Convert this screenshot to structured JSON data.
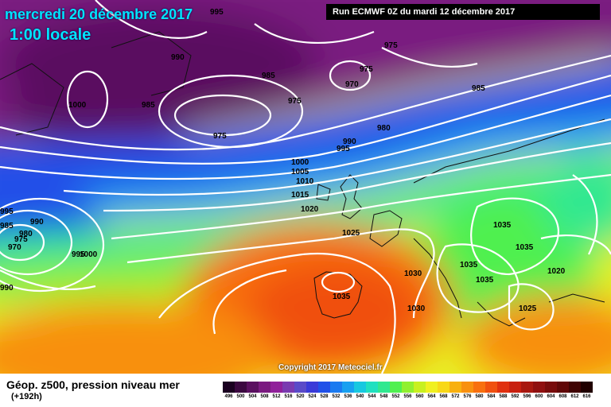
{
  "header": {
    "date": "mercredi 20 décembre 2017",
    "time": "1:00 locale",
    "run": "Run ECMWF 0Z du mardi 12 décembre 2017"
  },
  "copyright": "Copyright 2017 Meteociel.fr",
  "legend": {
    "title": "Géop. z500, pression niveau mer",
    "lead": "(+192h)",
    "scale": [
      {
        "v": "496",
        "c": "#1a0020"
      },
      {
        "v": "500",
        "c": "#3b0840"
      },
      {
        "v": "504",
        "c": "#5a1060"
      },
      {
        "v": "508",
        "c": "#7a1a80"
      },
      {
        "v": "512",
        "c": "#90209a"
      },
      {
        "v": "516",
        "c": "#7a3ab0"
      },
      {
        "v": "520",
        "c": "#5a4ac8"
      },
      {
        "v": "524",
        "c": "#3a3ad8"
      },
      {
        "v": "528",
        "c": "#2050e8"
      },
      {
        "v": "532",
        "c": "#1a7af0"
      },
      {
        "v": "536",
        "c": "#18a0f0"
      },
      {
        "v": "540",
        "c": "#18c8e0"
      },
      {
        "v": "544",
        "c": "#20e0c0"
      },
      {
        "v": "548",
        "c": "#30e890"
      },
      {
        "v": "552",
        "c": "#50f050"
      },
      {
        "v": "556",
        "c": "#90f030"
      },
      {
        "v": "560",
        "c": "#c8f020"
      },
      {
        "v": "564",
        "c": "#f0f020"
      },
      {
        "v": "568",
        "c": "#f8d818"
      },
      {
        "v": "572",
        "c": "#f8b010"
      },
      {
        "v": "576",
        "c": "#f89010"
      },
      {
        "v": "580",
        "c": "#f87010"
      },
      {
        "v": "584",
        "c": "#f05010"
      },
      {
        "v": "588",
        "c": "#e03010"
      },
      {
        "v": "592",
        "c": "#c82010"
      },
      {
        "v": "596",
        "c": "#a81810"
      },
      {
        "v": "600",
        "c": "#901010"
      },
      {
        "v": "604",
        "c": "#780c0c"
      },
      {
        "v": "608",
        "c": "#600808"
      },
      {
        "v": "612",
        "c": "#400404"
      },
      {
        "v": "616",
        "c": "#200000"
      }
    ]
  },
  "isobar_labels": [
    {
      "t": "995"
    },
    {
      "t": "990"
    },
    {
      "t": "975"
    },
    {
      "t": "985"
    },
    {
      "t": "975"
    },
    {
      "t": "970"
    },
    {
      "t": "985"
    },
    {
      "t": "1000"
    },
    {
      "t": "985"
    },
    {
      "t": "975"
    },
    {
      "t": "975"
    },
    {
      "t": "980"
    },
    {
      "t": "990"
    },
    {
      "t": "995"
    },
    {
      "t": "1000"
    },
    {
      "t": "1005"
    },
    {
      "t": "1010"
    },
    {
      "t": "1015"
    },
    {
      "t": "1020"
    },
    {
      "t": "1025"
    },
    {
      "t": "1035"
    },
    {
      "t": "1035"
    },
    {
      "t": "1020"
    },
    {
      "t": "1030"
    },
    {
      "t": "1035"
    },
    {
      "t": "1035"
    },
    {
      "t": "1025"
    },
    {
      "t": "1030"
    },
    {
      "t": "1035"
    },
    {
      "t": "990"
    },
    {
      "t": "985"
    },
    {
      "t": "980"
    },
    {
      "t": "975"
    },
    {
      "t": "970"
    },
    {
      "t": "995"
    },
    {
      "t": "1000"
    },
    {
      "t": "990"
    },
    {
      "t": "995"
    }
  ]
}
